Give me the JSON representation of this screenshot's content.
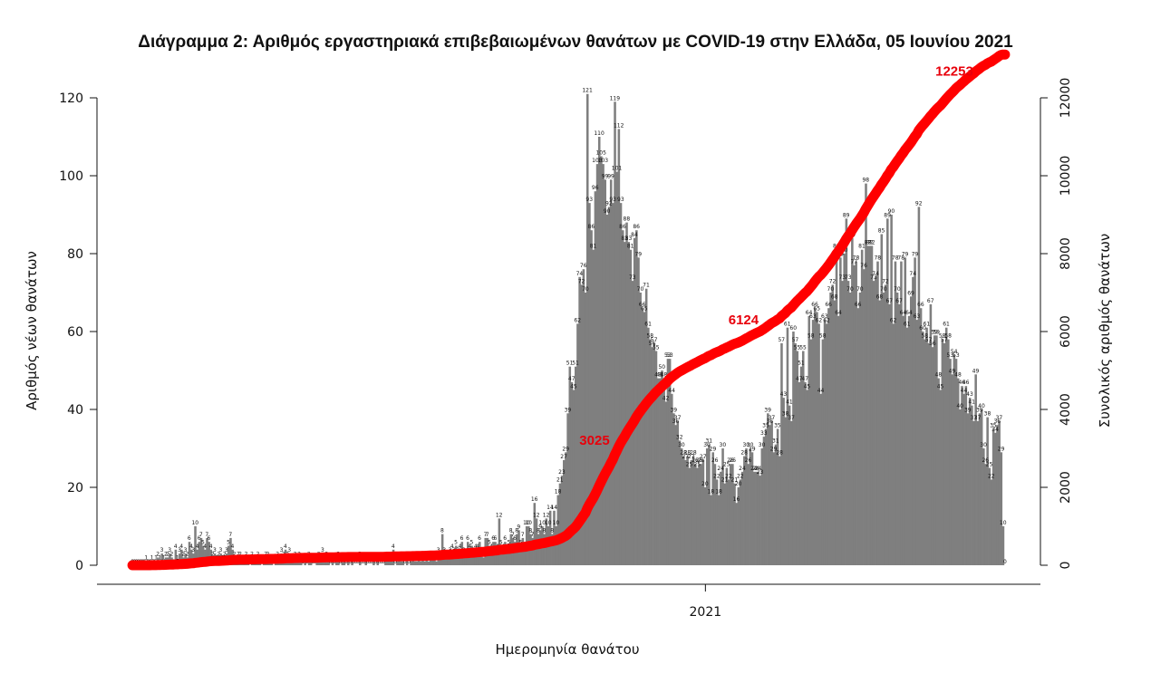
{
  "chart_data": {
    "type": "bar",
    "title": "Διάγραμμα 2: Αριθμός εργαστηριακά επιβεβαιωμένων θανάτων με COVID-19 στην Ελλάδα, 05 Ιουνίου 2021",
    "xlabel": "Ημερομηνία θανάτου",
    "ylabel": "Αριθμός νέων θανάτων",
    "y2label": "Συνολικός αριθμός θανάτων",
    "x_tick_labels": [
      "2021"
    ],
    "x_tick_dates": [
      "2021-01-01"
    ],
    "x_start": "2020-03-11",
    "x_end": "2021-06-05",
    "ylim": [
      0,
      120
    ],
    "y_ticks": [
      0,
      20,
      40,
      60,
      80,
      100,
      120
    ],
    "y2lim": [
      0,
      12000
    ],
    "y2_ticks": [
      0,
      2000,
      4000,
      6000,
      8000,
      10000,
      12000
    ],
    "grid": false,
    "colors": {
      "bars": "#7f7f7f",
      "cumulative_line": "#ff0000",
      "cumulative_labels": "#e8000b"
    },
    "series": [
      {
        "name": "new_deaths",
        "kind": "bar",
        "values": [
          0,
          0,
          0,
          0,
          0,
          0,
          0,
          1,
          0,
          0,
          1,
          0,
          1,
          2,
          1,
          3,
          1,
          2,
          2,
          3,
          2,
          0,
          4,
          1,
          3,
          4,
          2,
          3,
          2,
          6,
          4,
          3,
          10,
          4,
          6,
          7,
          5,
          4,
          7,
          6,
          4,
          2,
          3,
          1,
          2,
          3,
          1,
          2,
          3,
          5,
          7,
          4,
          2,
          1,
          2,
          2,
          1,
          1,
          2,
          1,
          0,
          2,
          1,
          1,
          2,
          1,
          0,
          1,
          2,
          2,
          1,
          1,
          0,
          1,
          2,
          1,
          3,
          2,
          4,
          2,
          3,
          1,
          1,
          2,
          1,
          2,
          1,
          0,
          1,
          0,
          2,
          1,
          0,
          0,
          1,
          2,
          1,
          3,
          1,
          2,
          1,
          0,
          1,
          0,
          1,
          2,
          0,
          1,
          1,
          0,
          1,
          0,
          1,
          0,
          0,
          0,
          2,
          0,
          0,
          1,
          0,
          0,
          0,
          1,
          0,
          1,
          0,
          0,
          0,
          1,
          2,
          1,
          1,
          4,
          0,
          1,
          2,
          1,
          1,
          0,
          1,
          0,
          1,
          2,
          1,
          1,
          2,
          1,
          2,
          1,
          2,
          1,
          2,
          2,
          2,
          1,
          3,
          2,
          8,
          3,
          2,
          2,
          3,
          4,
          3,
          5,
          3,
          4,
          6,
          3,
          2,
          6,
          4,
          5,
          3,
          4,
          4,
          6,
          3,
          2,
          7,
          7,
          5,
          4,
          6,
          6,
          4,
          12,
          5,
          4,
          6,
          4,
          5,
          8,
          7,
          6,
          8,
          9,
          5,
          7,
          4,
          10,
          10,
          8,
          7,
          16,
          12,
          8,
          9,
          10,
          8,
          12,
          10,
          14,
          8,
          14,
          10,
          18,
          21,
          23,
          27,
          29,
          39,
          51,
          47,
          45,
          51,
          62,
          74,
          72,
          76,
          70,
          121,
          93,
          86,
          81,
          96,
          103,
          110,
          105,
          103,
          99,
          90,
          92,
          99,
          93,
          119,
          101,
          112,
          93,
          86,
          83,
          88,
          83,
          81,
          73,
          84,
          86,
          79,
          70,
          66,
          65,
          71,
          61,
          58,
          56,
          57,
          55,
          48,
          48,
          50,
          48,
          42,
          53,
          53,
          44,
          39,
          36,
          37,
          32,
          30,
          28,
          27,
          28,
          25,
          27,
          28,
          26,
          25,
          26,
          26,
          27,
          20,
          30,
          31,
          18,
          29,
          26,
          22,
          18,
          24,
          30,
          21,
          25,
          22,
          26,
          26,
          21,
          16,
          20,
          22,
          24,
          28,
          30,
          26,
          30,
          29,
          24,
          24,
          24,
          23,
          30,
          33,
          35,
          39,
          36,
          37,
          29,
          31,
          35,
          28,
          57,
          43,
          38,
          61,
          41,
          37,
          60,
          57,
          55,
          47,
          51,
          55,
          47,
          45,
          64,
          58,
          63,
          66,
          65,
          62,
          44,
          58,
          63,
          62,
          66,
          70,
          72,
          68,
          81,
          64,
          79,
          73,
          80,
          89,
          73,
          70,
          84,
          77,
          78,
          66,
          70,
          81,
          76,
          98,
          82,
          82,
          82,
          73,
          74,
          78,
          68,
          85,
          70,
          72,
          89,
          67,
          90,
          62,
          78,
          70,
          67,
          78,
          64,
          79,
          61,
          64,
          69,
          74,
          79,
          63,
          92,
          66,
          60,
          58,
          61,
          57,
          67,
          56,
          59,
          59,
          48,
          45,
          58,
          57,
          61,
          58,
          53,
          49,
          54,
          53,
          48,
          40,
          46,
          44,
          46,
          39,
          43,
          41,
          37,
          49,
          37,
          39,
          40,
          30,
          26,
          38,
          25,
          22,
          35,
          34,
          36,
          37,
          29,
          10,
          0
        ]
      },
      {
        "name": "cumulative_deaths",
        "kind": "line",
        "axis": "right",
        "labels": [
          {
            "text": "3025",
            "value": 3025
          },
          {
            "text": "6124",
            "value": 6124
          },
          {
            "text": "12253",
            "value": 12253
          }
        ]
      }
    ]
  }
}
